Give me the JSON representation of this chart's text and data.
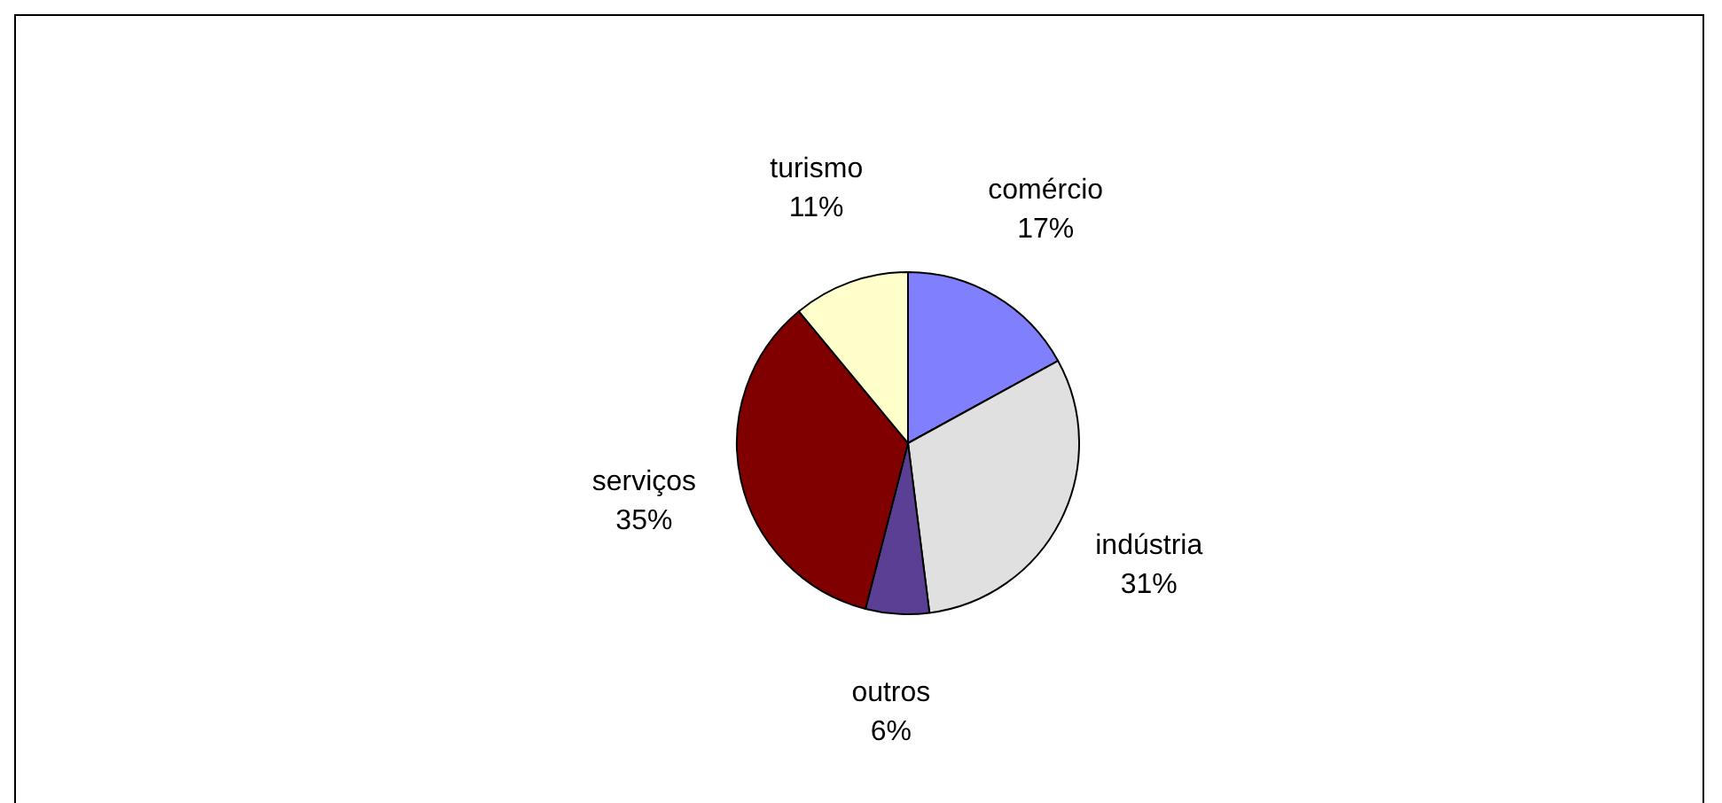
{
  "chart_data": {
    "type": "pie",
    "categories": [
      "comércio",
      "indústria",
      "outros",
      "serviços",
      "turismo"
    ],
    "values": [
      17,
      31,
      6,
      35,
      11
    ],
    "value_labels": [
      "17%",
      "31%",
      "6%",
      "35%",
      "11%"
    ],
    "colors": [
      "#8080ff",
      "#e0e0e0",
      "#5a3f94",
      "#800000",
      "#ffffcc"
    ],
    "legend": false
  }
}
